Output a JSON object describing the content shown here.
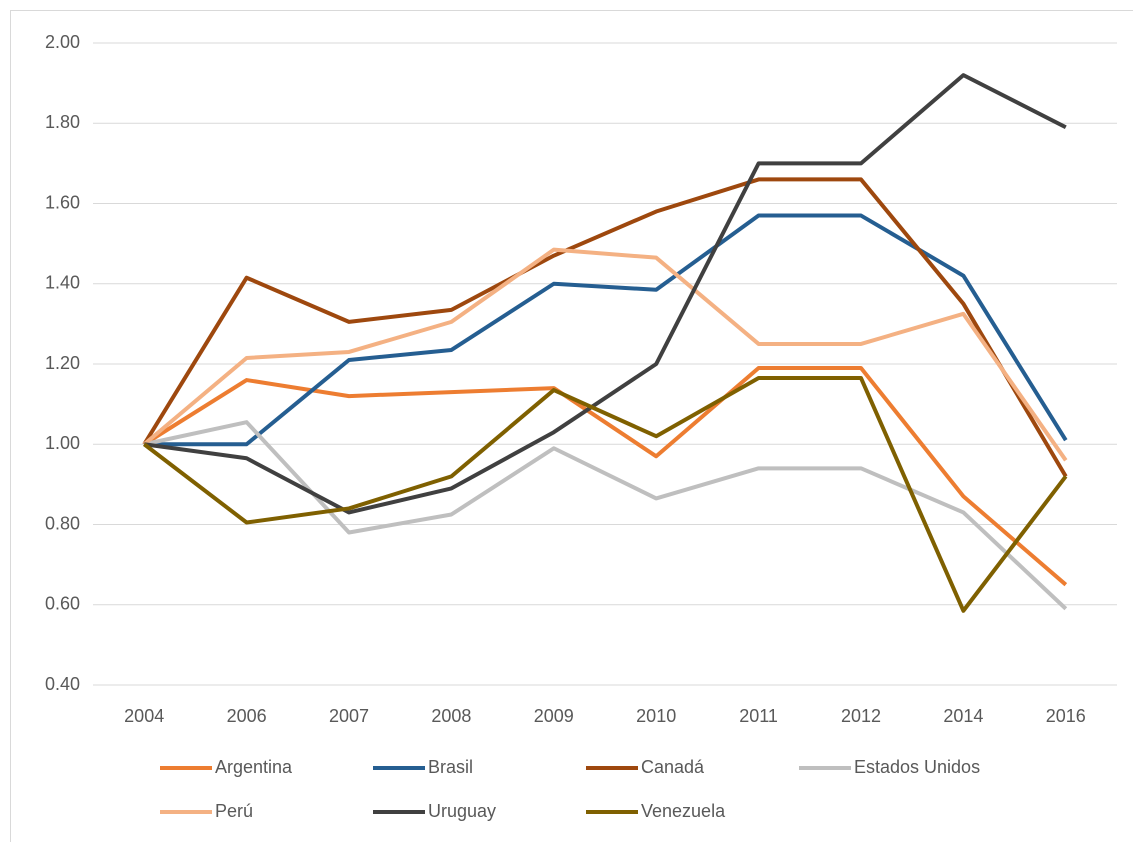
{
  "chart_data": {
    "type": "line",
    "categories": [
      "2004",
      "2006",
      "2007",
      "2008",
      "2009",
      "2010",
      "2011",
      "2012",
      "2014",
      "2016"
    ],
    "series": [
      {
        "name": "Argentina",
        "color": "#ed7d31",
        "values": [
          1.0,
          1.16,
          1.12,
          1.13,
          1.14,
          0.97,
          1.19,
          1.19,
          0.87,
          0.65
        ]
      },
      {
        "name": "Brasil",
        "color": "#255e91",
        "values": [
          1.0,
          1.0,
          1.21,
          1.235,
          1.4,
          1.385,
          1.57,
          1.57,
          1.42,
          1.01
        ]
      },
      {
        "name": "Canadá",
        "color": "#9e480e",
        "values": [
          1.0,
          1.415,
          1.305,
          1.335,
          1.47,
          1.58,
          1.66,
          1.66,
          1.35,
          0.92
        ]
      },
      {
        "name": "Estados Unidos",
        "color": "#bfbfbf",
        "values": [
          1.0,
          1.055,
          0.78,
          0.825,
          0.99,
          0.865,
          0.94,
          0.94,
          0.83,
          0.59
        ]
      },
      {
        "name": "Perú",
        "color": "#f4b183",
        "values": [
          1.0,
          1.215,
          1.23,
          1.305,
          1.485,
          1.465,
          1.25,
          1.25,
          1.325,
          0.96
        ]
      },
      {
        "name": "Uruguay",
        "color": "#404040",
        "values": [
          1.0,
          0.965,
          0.83,
          0.89,
          1.03,
          1.2,
          1.7,
          1.7,
          1.92,
          1.79
        ]
      },
      {
        "name": "Venezuela",
        "color": "#7f6000",
        "values": [
          1.0,
          0.805,
          0.84,
          0.92,
          1.135,
          1.02,
          1.165,
          1.165,
          0.585,
          0.92
        ]
      }
    ],
    "ylim": [
      0.4,
      2.0
    ],
    "yticks": [
      {
        "value": 0.4,
        "label": "0.40"
      },
      {
        "value": 0.6,
        "label": "0.60"
      },
      {
        "value": 0.8,
        "label": "0.80"
      },
      {
        "value": 1.0,
        "label": "1.00"
      },
      {
        "value": 1.2,
        "label": "1.20"
      },
      {
        "value": 1.4,
        "label": "1.40"
      },
      {
        "value": 1.6,
        "label": "1.60"
      },
      {
        "value": 1.8,
        "label": "1.80"
      },
      {
        "value": 2.0,
        "label": "2.00"
      }
    ],
    "grid": true,
    "legend": "bottom"
  }
}
